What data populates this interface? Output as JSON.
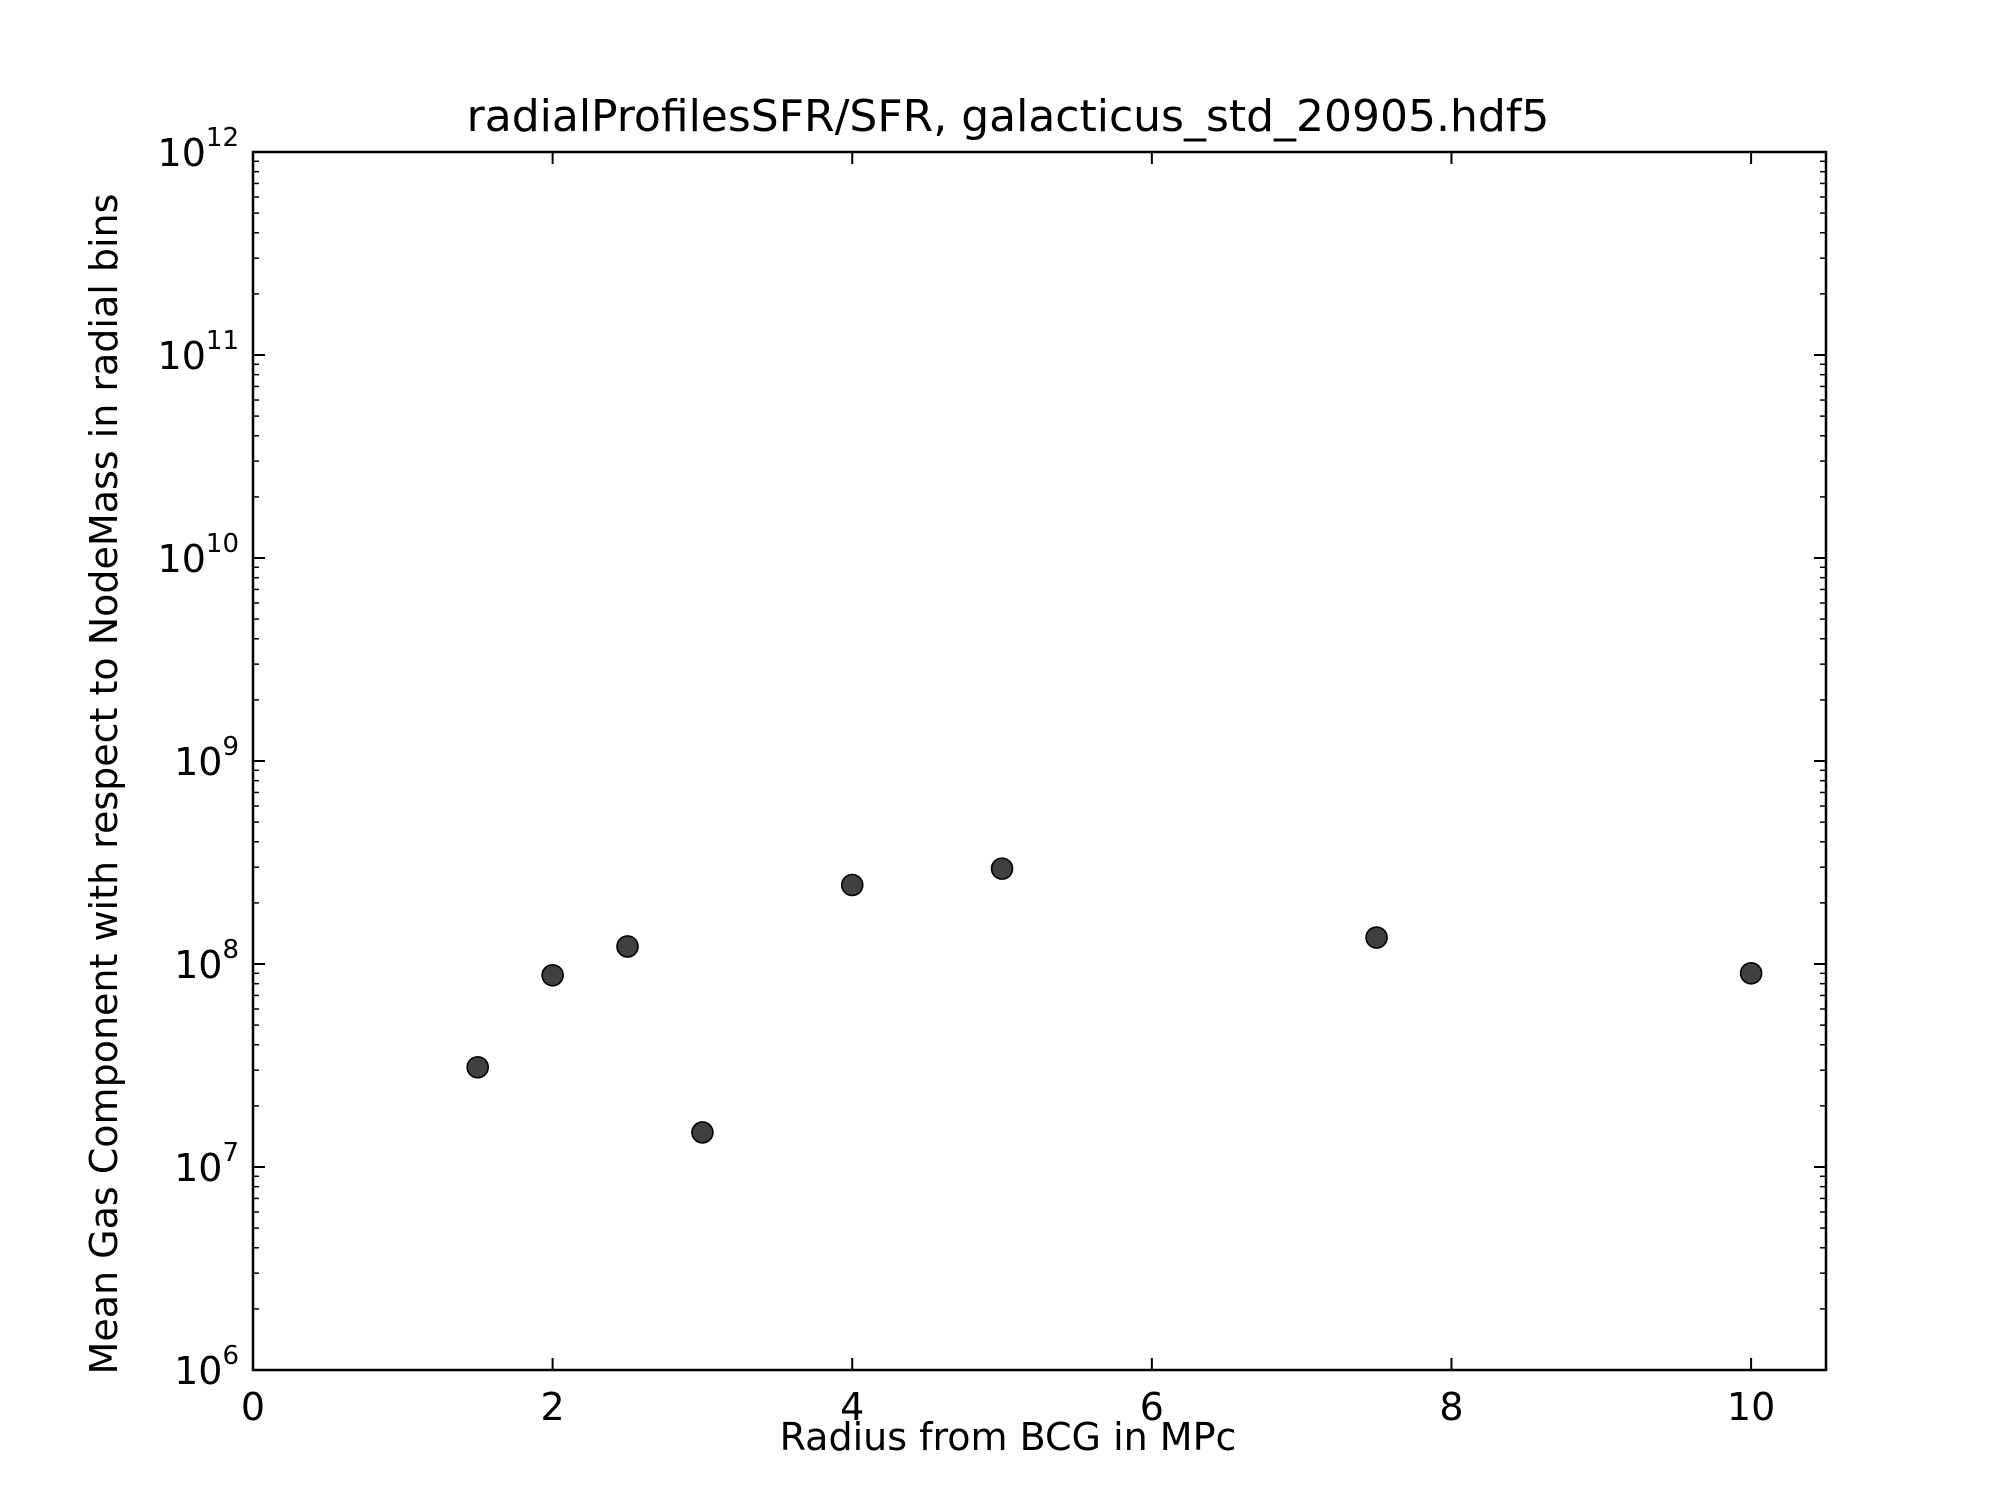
{
  "chart_data": {
    "type": "scatter",
    "title": "radialProfilesSFR/SFR, galacticus_std_20905.hdf5",
    "xlabel": "Radius from BCG in MPc",
    "ylabel": "Mean Gas Component with respect to NodeMass in radial bins",
    "xlim": [
      0,
      10.5
    ],
    "ylim": [
      1000000,
      1000000000000
    ],
    "yscale": "log",
    "grid": false,
    "x_ticks": [
      0,
      2,
      4,
      6,
      8,
      10
    ],
    "x_tick_labels": [
      "0",
      "2",
      "4",
      "6",
      "8",
      "10"
    ],
    "y_ticks": [
      1000000,
      10000000,
      100000000,
      1000000000,
      10000000000,
      100000000000,
      1000000000000
    ],
    "y_tick_labels": [
      {
        "base": "10",
        "exp": "6"
      },
      {
        "base": "10",
        "exp": "7"
      },
      {
        "base": "10",
        "exp": "8"
      },
      {
        "base": "10",
        "exp": "9"
      },
      {
        "base": "10",
        "exp": "10"
      },
      {
        "base": "10",
        "exp": "11"
      },
      {
        "base": "10",
        "exp": "12"
      }
    ],
    "series": [
      {
        "color": "#404040",
        "points": [
          {
            "x": 1.5,
            "y": 31000000
          },
          {
            "x": 2.0,
            "y": 88000000
          },
          {
            "x": 2.5,
            "y": 122000000
          },
          {
            "x": 3.0,
            "y": 14800000
          },
          {
            "x": 4.0,
            "y": 245000000
          },
          {
            "x": 5.0,
            "y": 295000000
          },
          {
            "x": 7.5,
            "y": 135000000
          },
          {
            "x": 10.0,
            "y": 90000000
          }
        ]
      }
    ]
  }
}
